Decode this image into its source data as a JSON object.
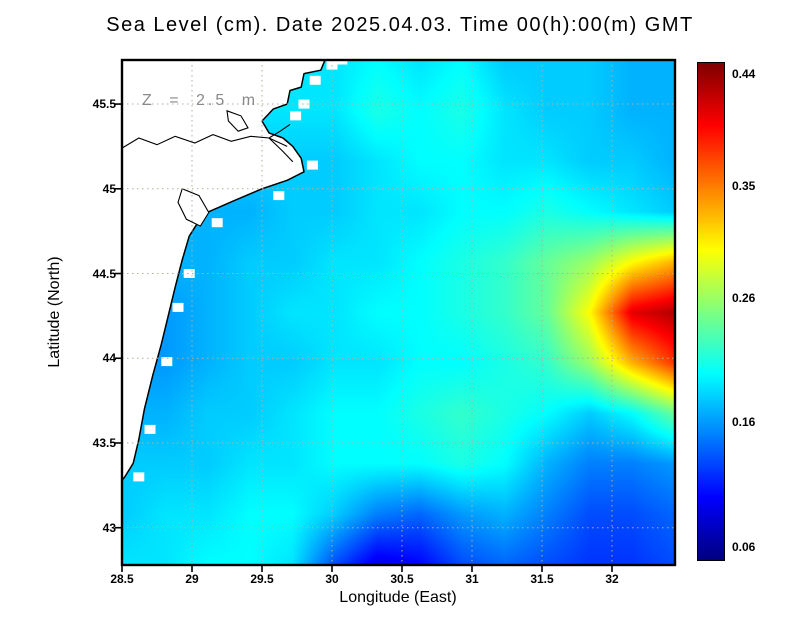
{
  "header": {
    "title": "Sea Level (cm). Date 2025.04.03. Time 00(h):00(m) GMT"
  },
  "plot": {
    "annotation": "Z = 2.5 m",
    "x_axis_label": "Longitude (East)",
    "y_axis_label": "Latitude (North)"
  },
  "chart_data": {
    "type": "heatmap",
    "title": "Sea Level (cm). Date 2025.04.03. Time 00(h):00(m) GMT",
    "xlabel": "Longitude (East)",
    "ylabel": "Latitude (North)",
    "depth_annotation": "Z = 2.5 m",
    "x_range": [
      28.5,
      32.45
    ],
    "y_range": [
      42.78,
      45.76
    ],
    "x_ticks": [
      28.5,
      29,
      29.5,
      30,
      30.5,
      31,
      31.5,
      32
    ],
    "x_tick_labels": [
      "28.5",
      "29",
      "29.5",
      "30",
      "30.5",
      "31",
      "31.5",
      "32"
    ],
    "y_ticks": [
      43,
      43.5,
      44,
      44.5,
      45,
      45.5
    ],
    "y_tick_labels": [
      "43",
      "43.5",
      "44",
      "44.5",
      "45",
      "45.5"
    ],
    "grid_on": true,
    "colorbar": {
      "position": "right",
      "min": 0.05,
      "max": 0.45,
      "tick_values": [
        0.44,
        0.35,
        0.26,
        0.16,
        0.06
      ],
      "tick_labels": [
        "0.44",
        "0.35",
        "0.26",
        "0.16",
        "0.06"
      ]
    },
    "colormap": [
      [
        0.0,
        "#000080"
      ],
      [
        0.125,
        "#0000ff"
      ],
      [
        0.375,
        "#00ffff"
      ],
      [
        0.625,
        "#ffff00"
      ],
      [
        0.875,
        "#ff0000"
      ],
      [
        1.0,
        "#800000"
      ]
    ],
    "grid": {
      "lons": [
        28.5,
        28.8,
        29.11,
        29.41,
        29.72,
        30.02,
        30.32,
        30.62,
        30.93,
        31.23,
        31.53,
        31.84,
        32.14,
        32.45
      ],
      "lats": [
        45.76,
        45.46,
        45.16,
        44.87,
        44.57,
        44.27,
        43.97,
        43.67,
        43.37,
        43.08,
        42.78
      ],
      "values": [
        [
          null,
          null,
          null,
          null,
          null,
          0.19,
          0.2,
          0.19,
          0.2,
          0.18,
          0.18,
          0.18,
          0.17,
          0.17
        ],
        [
          null,
          null,
          null,
          null,
          null,
          0.19,
          0.21,
          0.2,
          0.21,
          0.19,
          0.18,
          0.18,
          0.17,
          0.17
        ],
        [
          null,
          null,
          null,
          null,
          null,
          0.18,
          0.19,
          0.2,
          0.2,
          0.19,
          0.19,
          0.18,
          0.18,
          0.17
        ],
        [
          null,
          null,
          null,
          0.17,
          0.18,
          0.18,
          0.19,
          0.19,
          0.2,
          0.2,
          0.21,
          0.2,
          0.19,
          0.18
        ],
        [
          null,
          null,
          0.17,
          0.18,
          0.18,
          0.19,
          0.19,
          0.2,
          0.21,
          0.22,
          0.24,
          0.26,
          0.3,
          0.33
        ],
        [
          null,
          0.16,
          0.17,
          0.18,
          0.19,
          0.19,
          0.2,
          0.2,
          0.21,
          0.22,
          0.24,
          0.3,
          0.41,
          0.43
        ],
        [
          null,
          0.16,
          0.17,
          0.18,
          0.18,
          0.19,
          0.19,
          0.2,
          0.2,
          0.21,
          0.22,
          0.26,
          0.33,
          0.38
        ],
        [
          null,
          0.17,
          0.18,
          0.18,
          0.19,
          0.2,
          0.2,
          0.21,
          0.22,
          0.21,
          0.2,
          0.18,
          0.2,
          0.24
        ],
        [
          null,
          0.18,
          0.18,
          0.19,
          0.19,
          0.2,
          0.2,
          0.2,
          0.21,
          0.2,
          0.17,
          0.15,
          0.15,
          0.16
        ],
        [
          0.18,
          0.19,
          0.19,
          0.2,
          0.2,
          0.18,
          0.15,
          0.14,
          0.16,
          0.17,
          0.15,
          0.13,
          0.13,
          0.14
        ],
        [
          0.19,
          0.19,
          0.2,
          0.2,
          0.19,
          0.13,
          0.09,
          0.1,
          0.13,
          0.14,
          0.13,
          0.12,
          0.12,
          0.13
        ]
      ]
    },
    "coastline": {
      "land": [
        [
          28.5,
          45.76
        ],
        [
          29.95,
          45.76
        ],
        [
          29.92,
          45.7
        ],
        [
          29.8,
          45.68
        ],
        [
          29.78,
          45.6
        ],
        [
          29.7,
          45.58
        ],
        [
          29.68,
          45.5
        ],
        [
          29.58,
          45.47
        ],
        [
          29.5,
          45.4
        ],
        [
          29.55,
          45.33
        ],
        [
          29.65,
          45.3
        ],
        [
          29.72,
          45.25
        ],
        [
          29.78,
          45.18
        ],
        [
          29.8,
          45.1
        ],
        [
          29.68,
          45.05
        ],
        [
          29.5,
          45.0
        ],
        [
          29.3,
          44.93
        ],
        [
          29.08,
          44.85
        ],
        [
          28.98,
          44.72
        ],
        [
          28.93,
          44.58
        ],
        [
          28.88,
          44.42
        ],
        [
          28.83,
          44.25
        ],
        [
          28.78,
          44.08
        ],
        [
          28.72,
          43.9
        ],
        [
          28.66,
          43.7
        ],
        [
          28.62,
          43.52
        ],
        [
          28.58,
          43.38
        ],
        [
          28.52,
          43.3
        ],
        [
          28.5,
          43.28
        ]
      ],
      "mask_steps": [
        [
          30.0,
          45.73
        ],
        [
          30.07,
          45.76
        ],
        [
          29.88,
          45.64
        ],
        [
          29.8,
          45.5
        ],
        [
          29.74,
          45.43
        ],
        [
          29.86,
          45.14
        ],
        [
          29.62,
          44.96
        ],
        [
          29.18,
          44.8
        ],
        [
          28.98,
          44.5
        ],
        [
          28.9,
          44.3
        ],
        [
          28.82,
          43.98
        ],
        [
          28.7,
          43.58
        ],
        [
          28.62,
          43.3
        ]
      ],
      "lagoons": [
        [
          [
            28.93,
            45.0
          ],
          [
            29.05,
            44.96
          ],
          [
            29.12,
            44.86
          ],
          [
            29.06,
            44.78
          ],
          [
            28.96,
            44.82
          ],
          [
            28.9,
            44.92
          ]
        ],
        [
          [
            29.25,
            45.46
          ],
          [
            29.35,
            45.43
          ],
          [
            29.4,
            45.36
          ],
          [
            29.33,
            45.34
          ],
          [
            29.26,
            45.4
          ]
        ]
      ],
      "rivers": [
        [
          [
            28.5,
            45.24
          ],
          [
            28.62,
            45.3
          ],
          [
            28.75,
            45.26
          ],
          [
            28.88,
            45.31
          ],
          [
            29.02,
            45.27
          ],
          [
            29.15,
            45.32
          ],
          [
            29.28,
            45.28
          ],
          [
            29.42,
            45.31
          ],
          [
            29.55,
            45.3
          ],
          [
            29.68,
            45.25
          ]
        ],
        [
          [
            29.55,
            45.3
          ],
          [
            29.63,
            45.34
          ],
          [
            29.7,
            45.38
          ]
        ],
        [
          [
            29.55,
            45.3
          ],
          [
            29.65,
            45.22
          ],
          [
            29.72,
            45.16
          ]
        ]
      ]
    }
  }
}
